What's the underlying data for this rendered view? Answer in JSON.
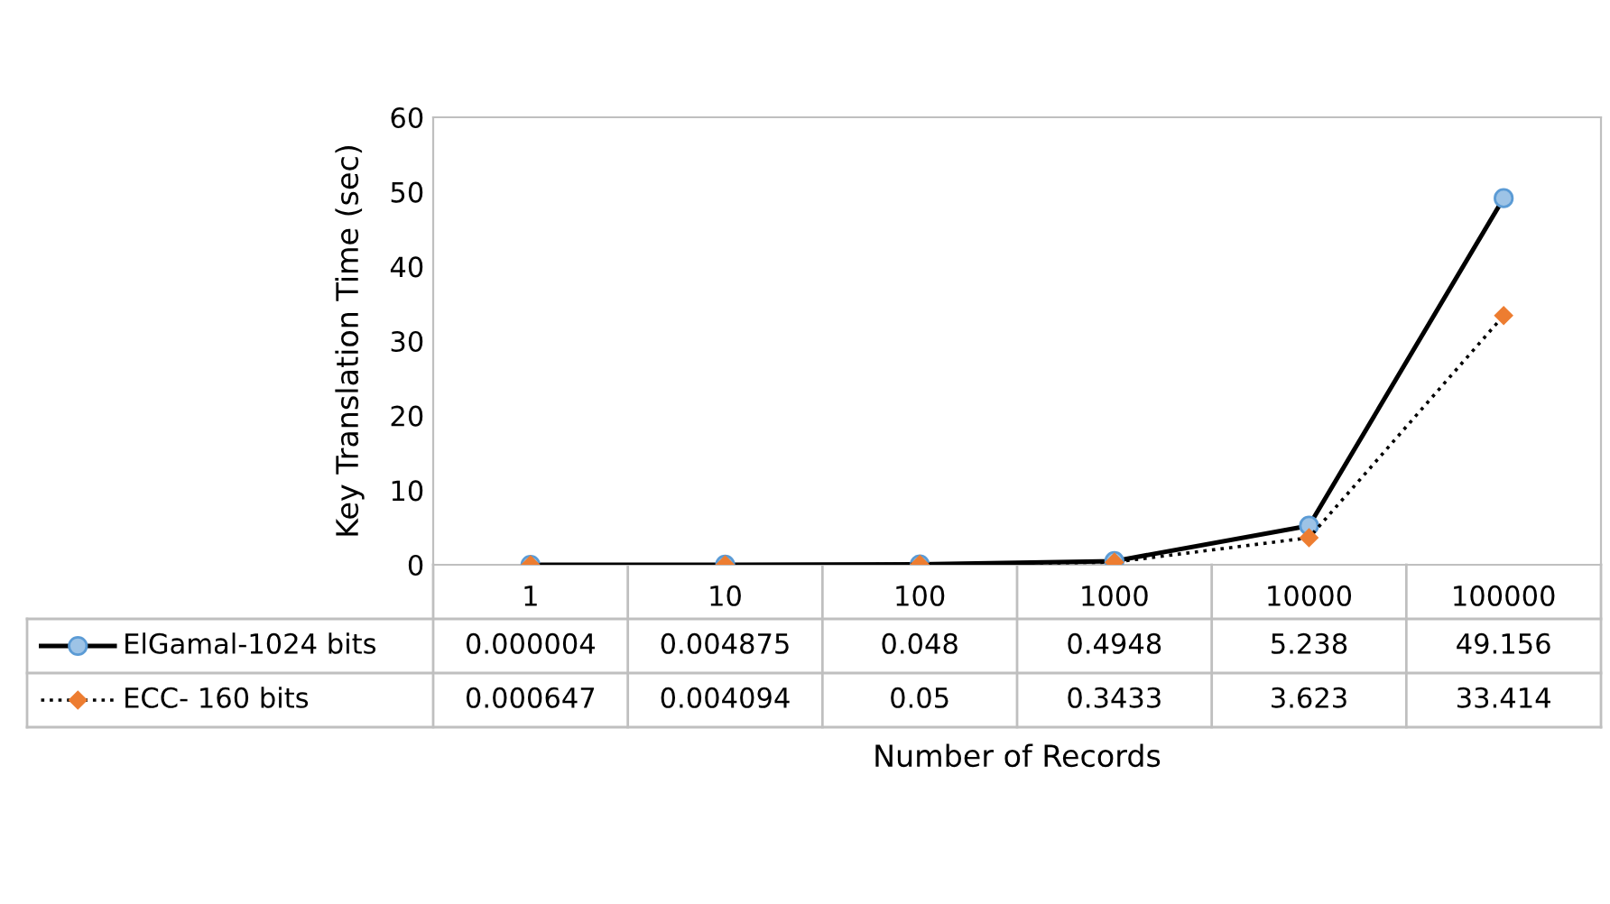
{
  "chart_data": {
    "type": "line",
    "xlabel": "Number of Records",
    "ylabel": "Key Translation Time (sec)",
    "categories": [
      "1",
      "10",
      "100",
      "1000",
      "10000",
      "100000"
    ],
    "series": [
      {
        "name": "ElGamal-1024 bits",
        "color": "#9dc3e6",
        "marker": "circle",
        "line_style": "solid",
        "values": [
          4e-06,
          0.004875,
          0.048,
          0.4948,
          5.238,
          49.156
        ],
        "value_labels": [
          "0.000004",
          "0.004875",
          "0.048",
          "0.4948",
          "5.238",
          "49.156"
        ]
      },
      {
        "name": "ECC- 160 bits",
        "color": "#ed7d31",
        "marker": "diamond",
        "line_style": "dotted",
        "values": [
          0.000647,
          0.004094,
          0.05,
          0.3433,
          3.623,
          33.414
        ],
        "value_labels": [
          "0.000647",
          "0.004094",
          "0.05",
          "0.3433",
          "3.623",
          "33.414"
        ]
      }
    ],
    "ylim": [
      0,
      60
    ],
    "yticks": [
      0,
      10,
      20,
      30,
      40,
      50,
      60
    ],
    "grid": false,
    "legend": "bottom",
    "data_labels": true
  }
}
